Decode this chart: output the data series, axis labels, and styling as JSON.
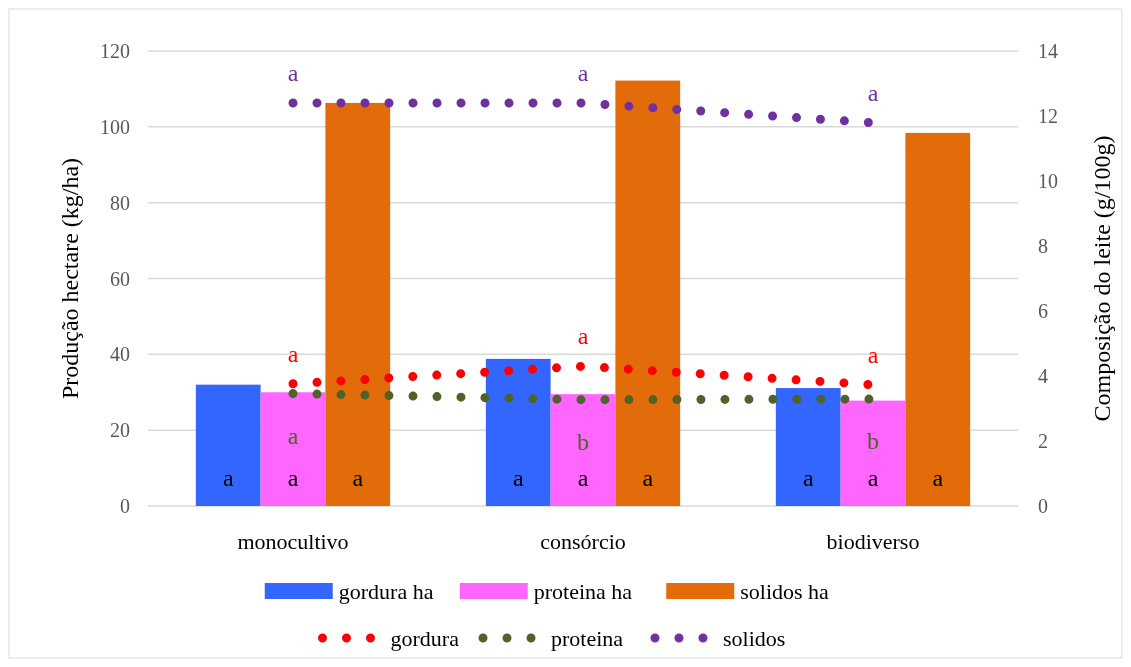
{
  "chart_data": {
    "type": "bar",
    "categories": [
      "monocultivo",
      "consórcio",
      "biodiverso"
    ],
    "ylabel": "Produção hectare (kg/ha)",
    "y2label": "Composição do leite (g/100g)",
    "ylim": [
      0,
      120
    ],
    "yticks": [
      0,
      20,
      40,
      60,
      80,
      100,
      120
    ],
    "y2lim": [
      0,
      14
    ],
    "y2ticks": [
      0,
      2,
      4,
      6,
      8,
      10,
      12,
      14
    ],
    "grid": "y",
    "legend": "bottom",
    "series": [
      {
        "name": "gordura ha",
        "color": "#3366ff",
        "values": [
          32.0,
          38.8,
          31.1
        ],
        "value_labels": [
          "a",
          "a",
          "a"
        ]
      },
      {
        "name": "proteina ha",
        "color": "#ff66ff",
        "values": [
          30.0,
          29.5,
          27.8
        ],
        "value_labels": [
          "a",
          "a",
          "a"
        ]
      },
      {
        "name": "solidos ha",
        "color": "#e36c0a",
        "values": [
          106.3,
          112.2,
          98.4
        ],
        "value_labels": [
          "a",
          "a",
          "a"
        ]
      },
      {
        "name": "gordura",
        "type": "line",
        "axis": "y2",
        "line_style": "dotted",
        "color": "#ff0000",
        "values": [
          3.76,
          4.3,
          3.73
        ],
        "value_labels": [
          "a",
          "a",
          "a"
        ]
      },
      {
        "name": "proteina",
        "type": "line",
        "axis": "y2",
        "line_style": "dotted",
        "color": "#4f6228",
        "values": [
          3.46,
          3.27,
          3.29
        ],
        "value_labels": [
          "a",
          "b",
          "b"
        ]
      },
      {
        "name": "solidos",
        "type": "line",
        "axis": "y2",
        "line_style": "dotted",
        "color": "#7030a0",
        "values": [
          12.4,
          12.4,
          11.79
        ],
        "value_labels": [
          "a",
          "a",
          "a"
        ]
      }
    ]
  }
}
